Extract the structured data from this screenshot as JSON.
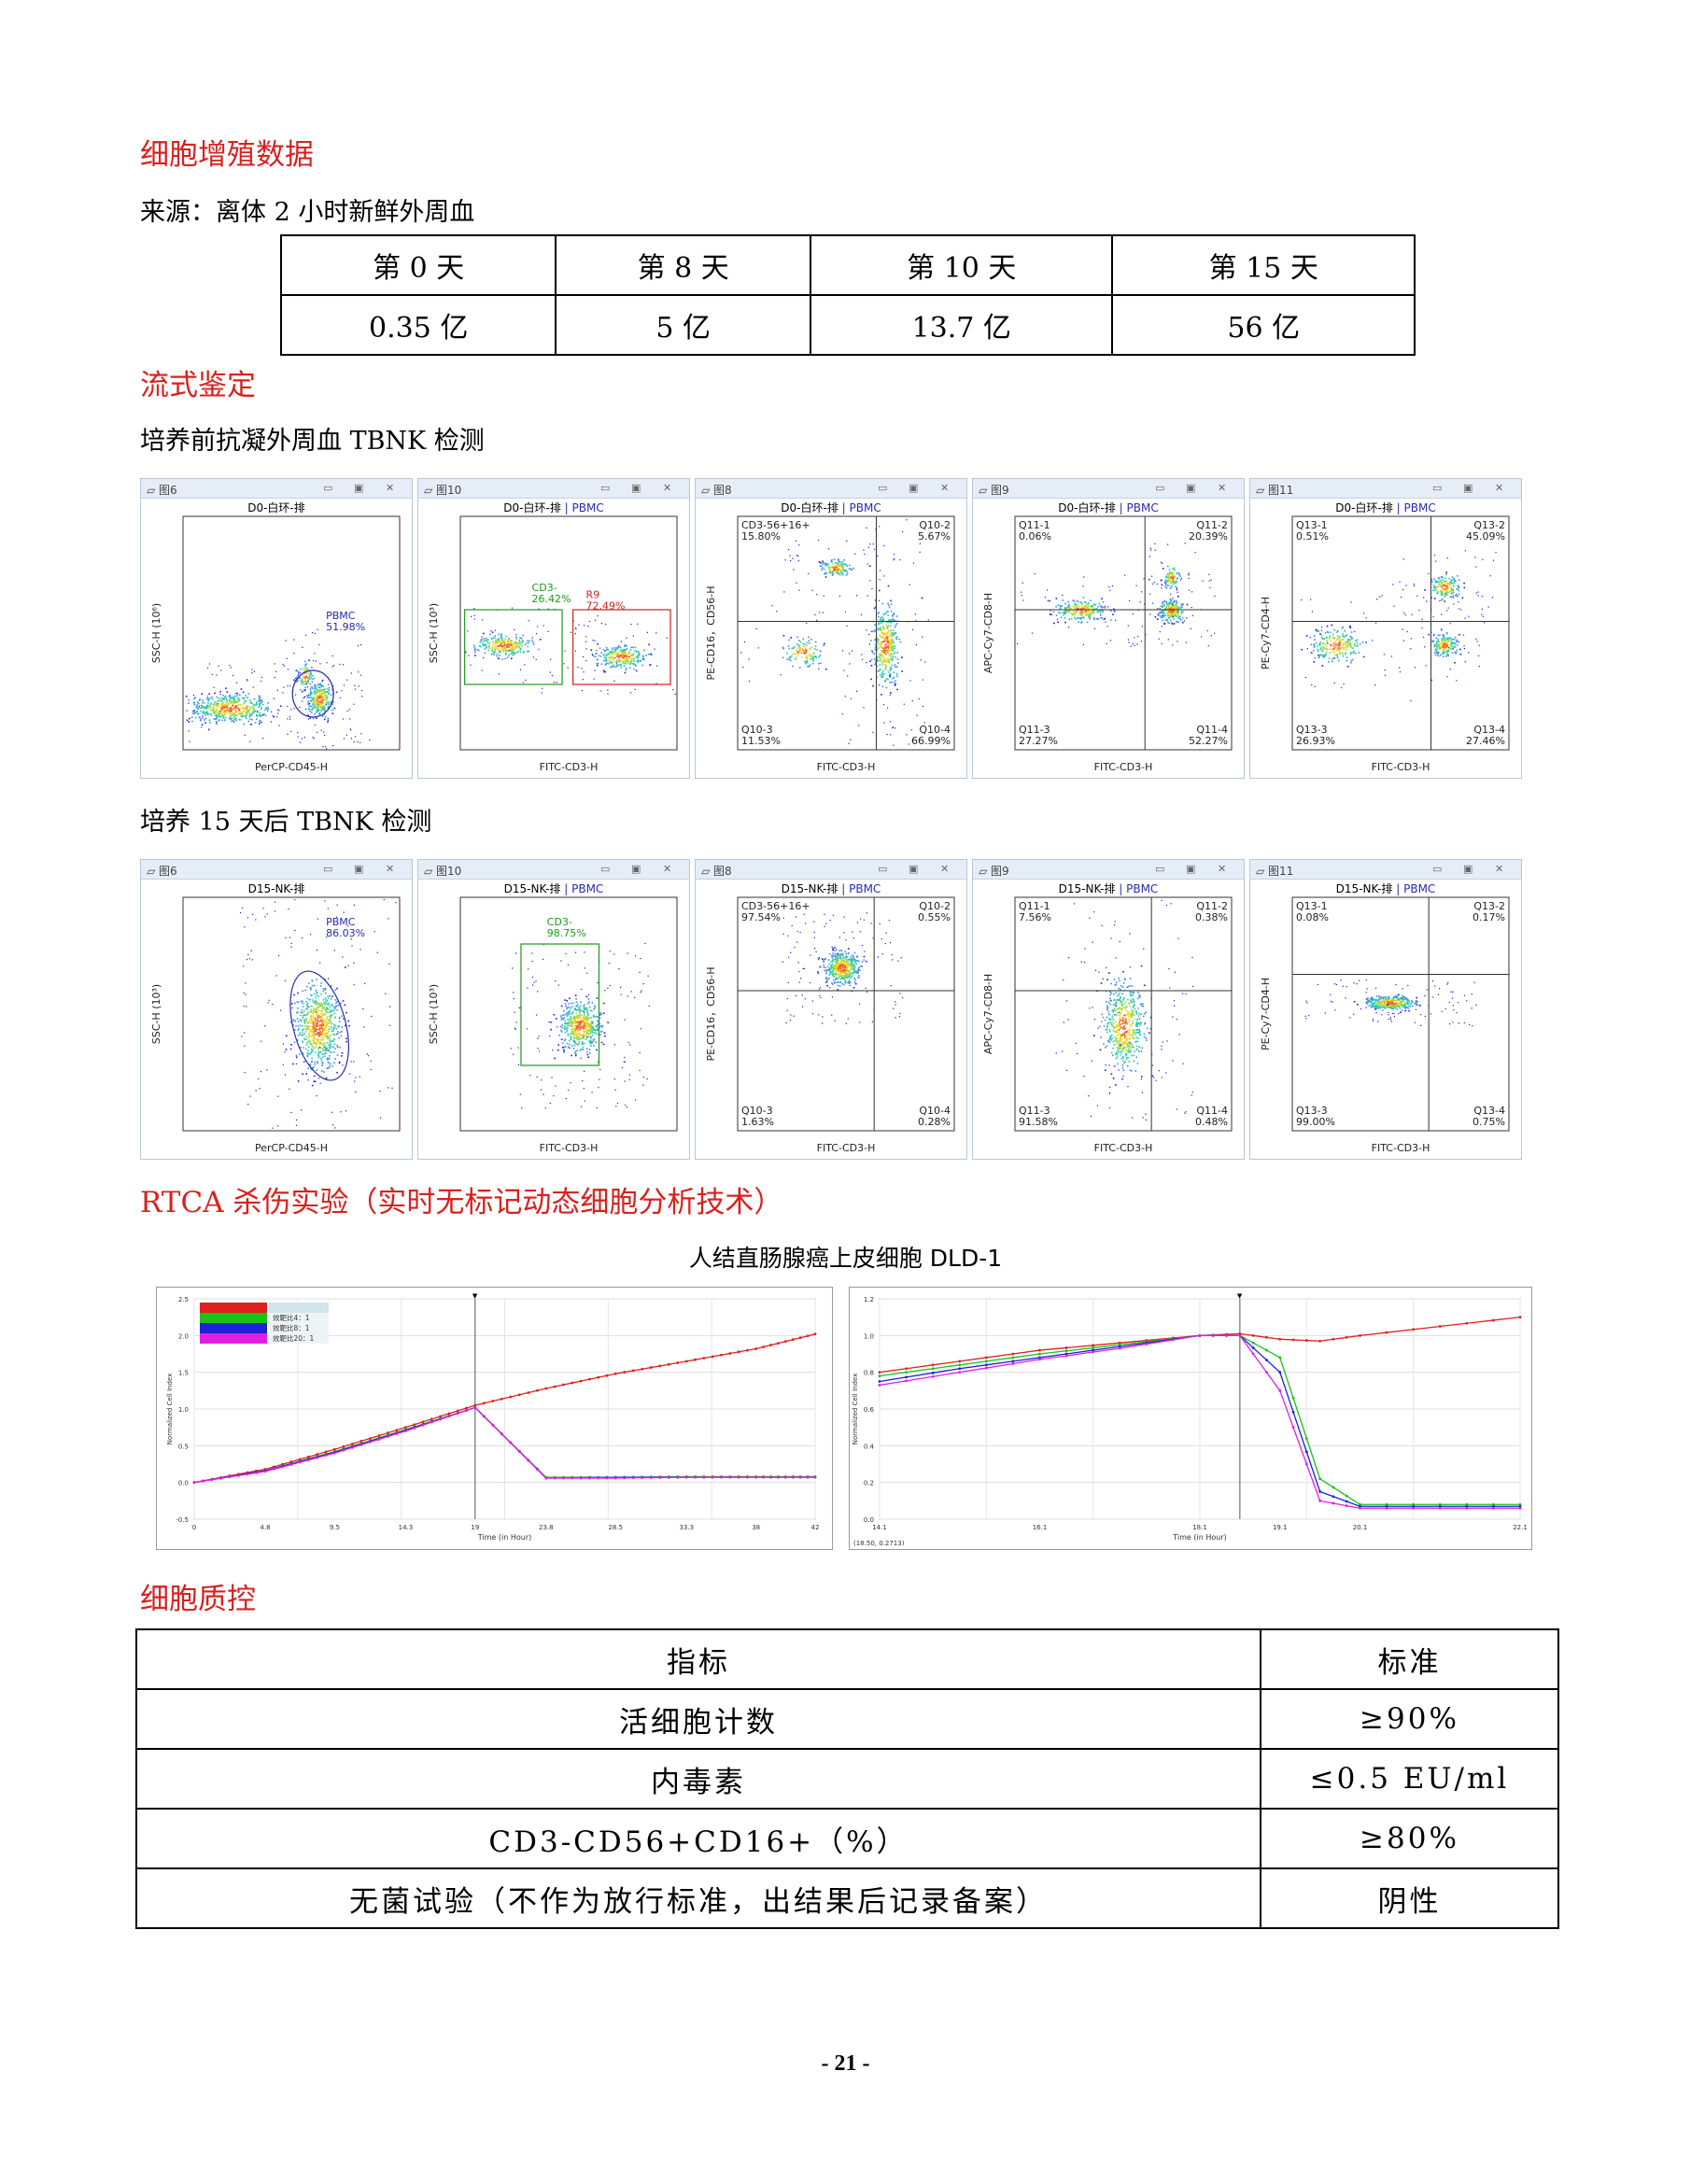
{
  "sections": {
    "prolif_title": "细胞增殖数据",
    "source": "来源：离体 2 小时新鲜外周血",
    "flow_title": "流式鉴定",
    "pre_label": "培养前抗凝外周血 TBNK 检测",
    "post_label": "培养 15 天后 TBNK 检测",
    "rtca_title": "RTCA 杀伤实验（实时无标记动态细胞分析技术）",
    "rtca_subtitle": "人结直肠腺癌上皮细胞  DLD-1",
    "qc_title": "细胞质控",
    "page_number": "- 21 -"
  },
  "prolif_table": {
    "days": [
      "第 0 天",
      "第 8 天",
      "第 10 天",
      "第 15 天"
    ],
    "counts": [
      "0.35 亿",
      "5 亿",
      "13.7 亿",
      "56 亿"
    ]
  },
  "qc_table": {
    "headers": [
      "指标",
      "标准"
    ],
    "rows": [
      [
        "活细胞计数",
        "≥90%"
      ],
      [
        "内毒素",
        "≤0.5 EU/ml"
      ],
      [
        "CD3-CD56+CD16+（%）",
        "≥80%"
      ],
      [
        "无菌试验（不作为放行标准，出结果后记录备案）",
        "阴性"
      ]
    ]
  },
  "flow_pre": [
    {
      "panel": "图6",
      "title": "D0-白环-排",
      "xlabel": "PerCP-CD45-H",
      "ylabel": "SSC-H (10⁶)",
      "gates": [
        "PBMC 51.98%"
      ]
    },
    {
      "panel": "图10",
      "title": "D0-白环-排",
      "sub": "PBMC",
      "xlabel": "FITC-CD3-H",
      "ylabel": "SSC-H (10³)",
      "gates": [
        "CD3- 26.42%",
        "R9 72.49%"
      ]
    },
    {
      "panel": "图8",
      "title": "D0-白环-排",
      "sub": "PBMC",
      "xlabel": "FITC-CD3-H",
      "ylabel": "PE-CD16，CD56-H",
      "quads": [
        "CD3-56+16+ 15.80%",
        "Q10-2 5.67%",
        "Q10-3 11.53%",
        "Q10-4 66.99%"
      ]
    },
    {
      "panel": "图9",
      "title": "D0-白环-排",
      "sub": "PBMC",
      "xlabel": "FITC-CD3-H",
      "ylabel": "APC-Cy7-CD8-H",
      "quads": [
        "Q11-1 0.06%",
        "Q11-2 20.39%",
        "Q11-3 27.27%",
        "Q11-4 52.27%"
      ]
    },
    {
      "panel": "图11",
      "title": "D0-白环-排",
      "sub": "PBMC",
      "xlabel": "FITC-CD3-H",
      "ylabel": "PE-Cy7-CD4-H",
      "quads": [
        "Q13-1 0.51%",
        "Q13-2 45.09%",
        "Q13-3 26.93%",
        "Q13-4 27.46%"
      ]
    }
  ],
  "flow_post": [
    {
      "panel": "图6",
      "title": "D15-NK-排",
      "xlabel": "PerCP-CD45-H",
      "ylabel": "SSC-H (10³)",
      "gates": [
        "PBMC 86.03%"
      ]
    },
    {
      "panel": "图10",
      "title": "D15-NK-排",
      "sub": "PBMC",
      "xlabel": "FITC-CD3-H",
      "ylabel": "SSC-H (10³)",
      "gates": [
        "CD3- 98.75%"
      ]
    },
    {
      "panel": "图8",
      "title": "D15-NK-排",
      "sub": "PBMC",
      "xlabel": "FITC-CD3-H",
      "ylabel": "PE-CD16，CD56-H",
      "quads": [
        "CD3-56+16+ 97.54%",
        "Q10-2 0.55%",
        "Q10-3 1.63%",
        "Q10-4 0.28%"
      ]
    },
    {
      "panel": "图9",
      "title": "D15-NK-排",
      "sub": "PBMC",
      "xlabel": "FITC-CD3-H",
      "ylabel": "APC-Cy7-CD8-H",
      "quads": [
        "Q11-1 7.56%",
        "Q11-2 0.38%",
        "Q11-3 91.58%",
        "Q11-4 0.48%"
      ]
    },
    {
      "panel": "图11",
      "title": "D15-NK-排",
      "sub": "PBMC",
      "xlabel": "FITC-CD3-H",
      "ylabel": "PE-Cy7-CD4-H",
      "quads": [
        "Q13-1 0.08%",
        "Q13-2 0.17%",
        "Q13-3 99.00%",
        "Q13-4 0.75%"
      ]
    }
  ],
  "chart_data": [
    {
      "type": "line",
      "xlabel": "Time (in Hour)",
      "ylabel": "Normalized Cell Index",
      "ylim": [
        -0.5,
        2.5
      ],
      "xlim": [
        0,
        42
      ],
      "legend": [
        "效靶比4：1",
        "效靶比8：1",
        "效靶比20：1"
      ],
      "x": [
        0,
        4.8,
        9.5,
        14.3,
        19.0,
        23.8,
        28.5,
        33.3,
        38.0,
        42
      ],
      "series": [
        {
          "color": "#e02020",
          "values": [
            0.0,
            0.18,
            0.45,
            0.75,
            1.05,
            1.28,
            1.48,
            1.65,
            1.82,
            2.02
          ]
        },
        {
          "color": "#18c318",
          "values": [
            0.0,
            0.16,
            0.42,
            0.72,
            1.02,
            0.07,
            0.07,
            0.08,
            0.08,
            0.08
          ]
        },
        {
          "color": "#2020d8",
          "values": [
            0.0,
            0.16,
            0.41,
            0.71,
            1.02,
            0.06,
            0.07,
            0.07,
            0.07,
            0.07
          ]
        },
        {
          "color": "#e020e0",
          "values": [
            0.0,
            0.15,
            0.4,
            0.7,
            1.02,
            0.06,
            0.06,
            0.07,
            0.07,
            0.07
          ]
        }
      ]
    },
    {
      "type": "line",
      "xlabel": "Time (in Hour)",
      "ylabel": "Normalized Cell Index",
      "ylim": [
        0,
        1.2
      ],
      "footer": "(18.50, 0.2713)",
      "x": [
        14.1,
        15.1,
        16.1,
        17.1,
        18.1,
        18.6,
        19.1,
        19.6,
        20.1,
        21.1,
        22.1
      ],
      "series": [
        {
          "color": "#e02020",
          "values": [
            0.8,
            0.86,
            0.92,
            0.96,
            1.0,
            1.01,
            0.98,
            0.97,
            1.0,
            1.05,
            1.1
          ]
        },
        {
          "color": "#18c318",
          "values": [
            0.78,
            0.84,
            0.9,
            0.95,
            1.0,
            1.0,
            0.88,
            0.22,
            0.08,
            0.08,
            0.08
          ]
        },
        {
          "color": "#2020d8",
          "values": [
            0.75,
            0.82,
            0.88,
            0.94,
            1.0,
            1.0,
            0.8,
            0.15,
            0.07,
            0.07,
            0.07
          ]
        },
        {
          "color": "#e020e0",
          "values": [
            0.73,
            0.8,
            0.87,
            0.93,
            1.0,
            1.0,
            0.7,
            0.1,
            0.06,
            0.06,
            0.06
          ]
        }
      ]
    }
  ]
}
